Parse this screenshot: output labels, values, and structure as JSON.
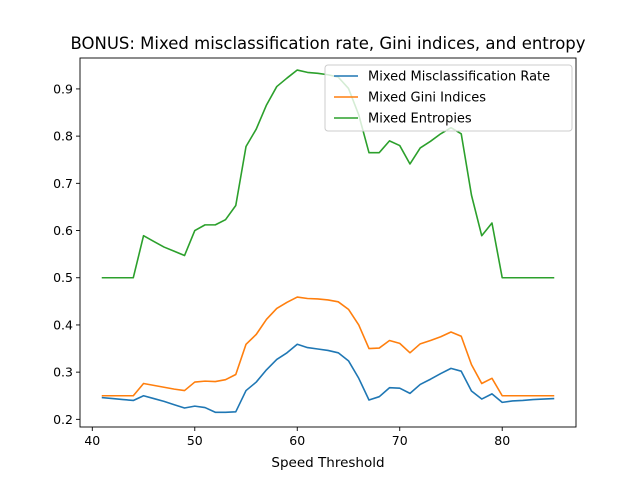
{
  "chart_data": {
    "type": "line",
    "title": "BONUS: Mixed misclassification rate, Gini indices, and entropy",
    "xlabel": "Speed Threshold",
    "ylabel": "",
    "xlim": [
      38.8,
      87.2
    ],
    "ylim": [
      0.1838,
      0.9655
    ],
    "xticks": [
      40,
      50,
      60,
      70,
      80
    ],
    "yticks": [
      0.2,
      0.3,
      0.4,
      0.5,
      0.6,
      0.7,
      0.8,
      0.9
    ],
    "ytick_labels": [
      "0.2",
      "0.3",
      "0.4",
      "0.5",
      "0.6",
      "0.7",
      "0.8",
      "0.9"
    ],
    "grid": false,
    "legend_position": "top-right",
    "x": [
      41,
      42,
      43,
      44,
      45,
      46,
      47,
      48,
      49,
      50,
      51,
      52,
      53,
      54,
      55,
      56,
      57,
      58,
      59,
      60,
      61,
      62,
      63,
      64,
      65,
      66,
      67,
      68,
      69,
      70,
      71,
      72,
      73,
      74,
      75,
      76,
      77,
      78,
      79,
      80,
      81,
      82,
      83,
      84,
      85
    ],
    "series": [
      {
        "name": "Mixed Misclassification Rate",
        "color": "#1f77b4",
        "values": [
          0.246,
          0.244,
          0.242,
          0.24,
          0.25,
          0.244,
          0.238,
          0.231,
          0.224,
          0.228,
          0.225,
          0.215,
          0.215,
          0.216,
          0.261,
          0.279,
          0.305,
          0.327,
          0.341,
          0.359,
          0.352,
          0.349,
          0.346,
          0.341,
          0.324,
          0.287,
          0.241,
          0.248,
          0.267,
          0.266,
          0.255,
          0.274,
          0.285,
          0.297,
          0.308,
          0.302,
          0.26,
          0.243,
          0.254,
          0.236,
          0.239,
          0.24,
          0.242,
          0.243,
          0.244
        ]
      },
      {
        "name": "Mixed Gini Indices",
        "color": "#ff7f0e",
        "values": [
          0.25,
          0.25,
          0.25,
          0.25,
          0.276,
          0.272,
          0.268,
          0.264,
          0.261,
          0.279,
          0.281,
          0.28,
          0.284,
          0.295,
          0.359,
          0.38,
          0.412,
          0.435,
          0.448,
          0.459,
          0.456,
          0.455,
          0.453,
          0.449,
          0.433,
          0.4,
          0.35,
          0.351,
          0.367,
          0.361,
          0.341,
          0.36,
          0.367,
          0.375,
          0.385,
          0.376,
          0.316,
          0.276,
          0.287,
          0.25,
          0.25,
          0.25,
          0.25,
          0.25,
          0.25
        ]
      },
      {
        "name": "Mixed Entropies",
        "color": "#2ca02c",
        "values": [
          0.5,
          0.5,
          0.5,
          0.5,
          0.589,
          0.577,
          0.565,
          0.556,
          0.547,
          0.6,
          0.612,
          0.612,
          0.623,
          0.653,
          0.778,
          0.815,
          0.866,
          0.905,
          0.923,
          0.94,
          0.935,
          0.933,
          0.93,
          0.925,
          0.901,
          0.845,
          0.765,
          0.765,
          0.79,
          0.78,
          0.741,
          0.775,
          0.789,
          0.805,
          0.818,
          0.805,
          0.675,
          0.589,
          0.616,
          0.5,
          0.5,
          0.5,
          0.5,
          0.5,
          0.5
        ]
      }
    ]
  }
}
